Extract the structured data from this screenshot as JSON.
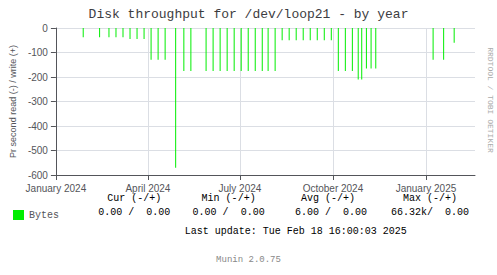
{
  "chart_data": {
    "type": "bar",
    "title": "Disk throughput for /dev/loop21 - by year",
    "ylabel": "Pr second read (-) / write (+)",
    "x": [
      1706400000,
      1707800000,
      1708600000,
      1709200000,
      1709800000,
      1710400000,
      1711000000,
      1711600000,
      1712200000,
      1712800000,
      1713400000,
      1714300000,
      1715000000,
      1715600000,
      1716900000,
      1717500000,
      1718100000,
      1718700000,
      1719300000,
      1719900000,
      1720500000,
      1721100000,
      1721700000,
      1722200000,
      1722800000,
      1723400000,
      1724000000,
      1724600000,
      1725200000,
      1725800000,
      1726400000,
      1727000000,
      1727600000,
      1728200000,
      1728800000,
      1729400000,
      1729900000,
      1730200000,
      1730600000,
      1731000000,
      1731400000,
      1736300000,
      1737200000,
      1738100000
    ],
    "series": [
      {
        "name": "Bytes",
        "color": "#00ee00",
        "values": [
          -38,
          -38,
          -38,
          -38,
          -38,
          -45,
          -45,
          -45,
          -130,
          -130,
          -130,
          -570,
          -175,
          -175,
          -175,
          -175,
          -175,
          -175,
          -175,
          -175,
          -175,
          -175,
          -175,
          -175,
          -175,
          -50,
          -50,
          -50,
          -50,
          -50,
          -50,
          -50,
          -50,
          -175,
          -175,
          -175,
          -210,
          -210,
          -165,
          -165,
          -165,
          -130,
          -130,
          -60
        ]
      }
    ],
    "xlim": [
      1704067200,
      1739880000
    ],
    "xticks": [
      {
        "value": 1704067200,
        "label": "January 2024"
      },
      {
        "value": 1711929600,
        "label": "April 2024"
      },
      {
        "value": 1719792000,
        "label": "July 2024"
      },
      {
        "value": 1727740800,
        "label": "October 2024"
      },
      {
        "value": 1735689600,
        "label": "January 2025"
      }
    ],
    "ylim": [
      -600,
      0
    ],
    "yticks": [
      0,
      -100,
      -200,
      -300,
      -400,
      -500,
      -600
    ],
    "grid": true,
    "legend": "bottom",
    "annotations": [
      "Cur (-/+)",
      "Min (-/+)",
      "Avg (-/+)",
      "Max (-/+)",
      "0.00 /  0.00",
      "0.00 /  0.00",
      " 6.00 /  0.00",
      "66.32k/  0.00",
      "Last update: Tue Feb 18 16:00:03 2025",
      "Munin 2.0.75",
      "RRDTOOL / TOBI OETIKER"
    ]
  }
}
